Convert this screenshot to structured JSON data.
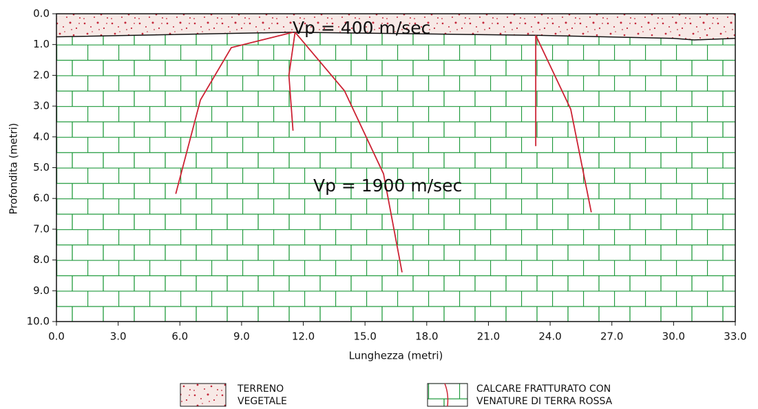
{
  "chart_data": {
    "type": "section",
    "xlabel": "Lunghezza (metri)",
    "ylabel": "Profondita (metri)",
    "xlim": [
      0,
      33
    ],
    "ylim": [
      0,
      10
    ],
    "xticks": [
      {
        "value": 0,
        "label": "0.0"
      },
      {
        "value": 3,
        "label": "3.0"
      },
      {
        "value": 6,
        "label": "6.0"
      },
      {
        "value": 9,
        "label": "9.0"
      },
      {
        "value": 12,
        "label": "12.0"
      },
      {
        "value": 15,
        "label": "15.0"
      },
      {
        "value": 18,
        "label": "18.0"
      },
      {
        "value": 21,
        "label": "21.0"
      },
      {
        "value": 24,
        "label": "24.0"
      },
      {
        "value": 27,
        "label": "27.0"
      },
      {
        "value": 30,
        "label": "30.0"
      },
      {
        "value": 33,
        "label": "33.0"
      }
    ],
    "yticks": [
      {
        "value": 0,
        "label": "0.0"
      },
      {
        "value": 1,
        "label": "1.0"
      },
      {
        "value": 2,
        "label": "2.0"
      },
      {
        "value": 3,
        "label": "3.0"
      },
      {
        "value": 4,
        "label": "4.0"
      },
      {
        "value": 5,
        "label": "5.0"
      },
      {
        "value": 6,
        "label": "6.0"
      },
      {
        "value": 7,
        "label": "7.0"
      },
      {
        "value": 8,
        "label": "8.0"
      },
      {
        "value": 9,
        "label": "9.0"
      },
      {
        "value": 10,
        "label": "10.0"
      }
    ],
    "annotations": [
      "Vp = 400 m/sec",
      "Vp = 1900 m/sec"
    ],
    "boundary": {
      "x": [
        0,
        11.5,
        23.3,
        30,
        31,
        33
      ],
      "values": [
        0.75,
        0.6,
        0.7,
        0.8,
        0.85,
        0.8
      ]
    },
    "line_color": "#cc2233",
    "series": [
      {
        "x": [
          5.8,
          7.0,
          8.5,
          11.5
        ],
        "values": [
          5.85,
          2.8,
          1.1,
          0.6
        ]
      },
      {
        "x": [
          11.6,
          14.0,
          15.9,
          16.8
        ],
        "values": [
          0.6,
          2.5,
          5.2,
          8.4
        ]
      },
      {
        "x": [
          11.6,
          11.3,
          11.5
        ],
        "values": [
          0.6,
          2.0,
          3.8
        ]
      },
      {
        "x": [
          23.3,
          25.0,
          26.0
        ],
        "values": [
          0.7,
          3.1,
          6.45
        ]
      },
      {
        "x": [
          23.3,
          23.3
        ],
        "values": [
          0.7,
          4.3
        ]
      }
    ],
    "legend": [
      {
        "lines": [
          "TERRENO",
          "VEGETALE"
        ]
      },
      {
        "lines": [
          "CALCARE FRATTURATO CON",
          "VENATURE DI TERRA ROSSA"
        ]
      }
    ]
  }
}
